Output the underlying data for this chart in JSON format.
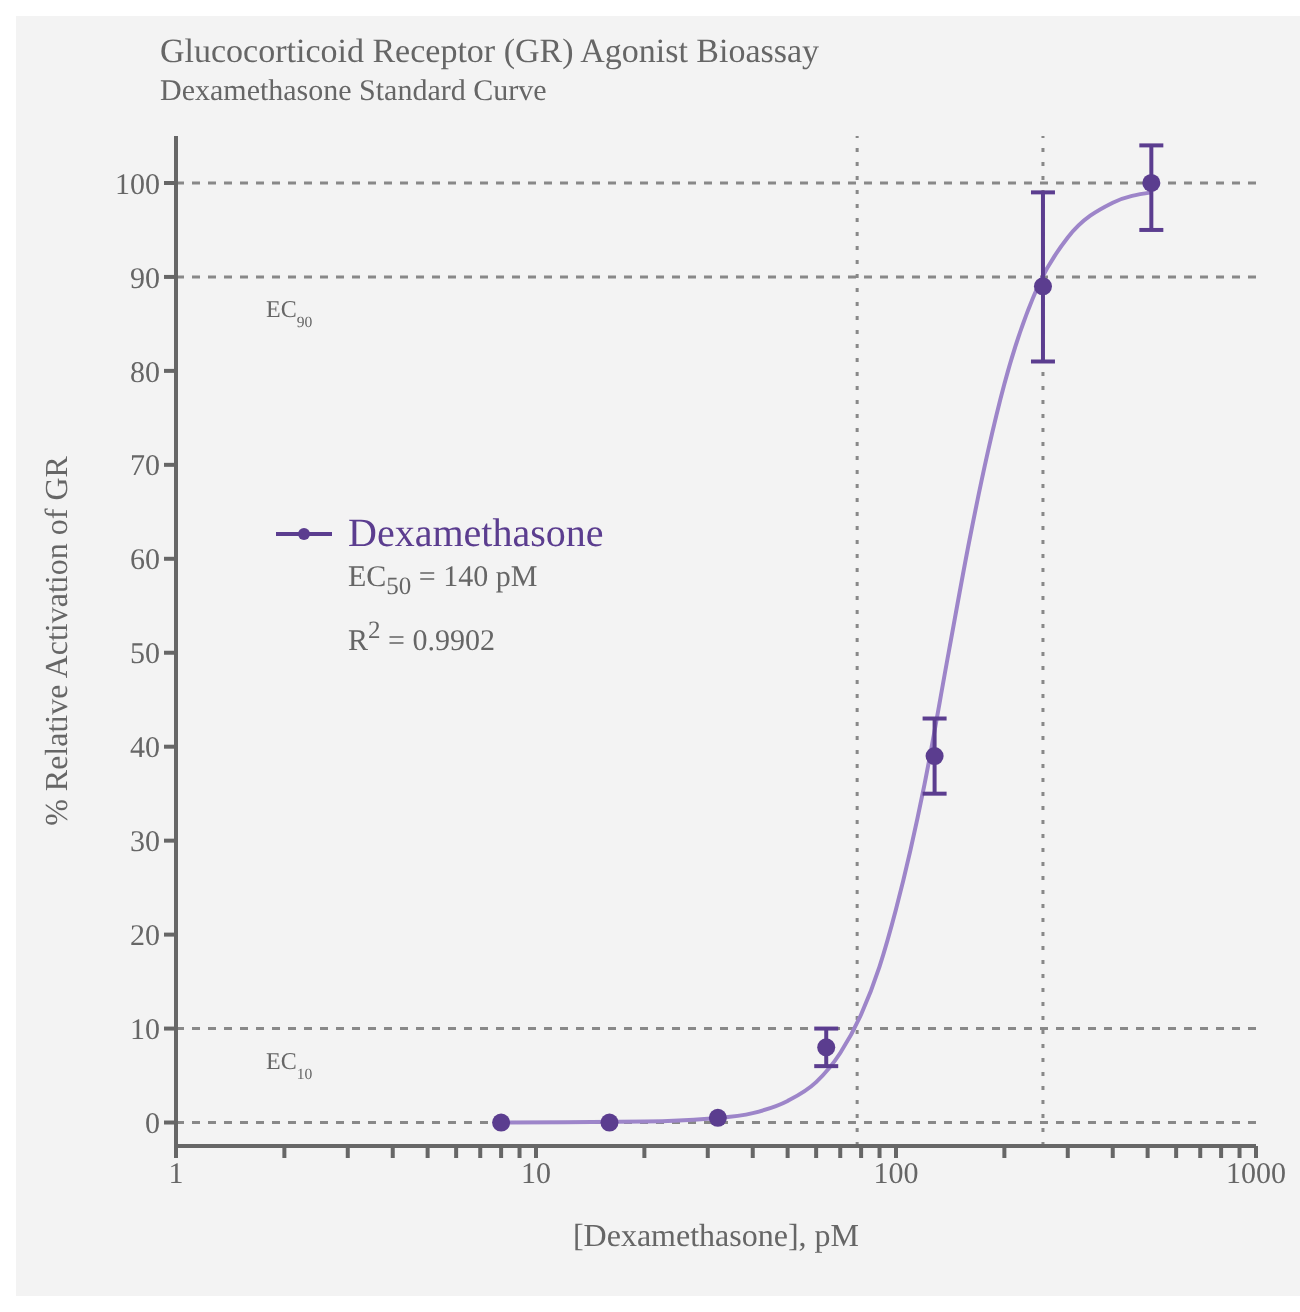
{
  "chart_data": {
    "type": "scatter",
    "title": "Glucocorticoid Receptor (GR) Agonist Bioassay",
    "subtitle": "Dexamethasone Standard Curve",
    "xlabel": "[Dexamethasone], pM",
    "ylabel": "% Relative Activation of GR",
    "series": [
      {
        "name": "Dexamethasone",
        "marker": "circle",
        "color": "#5b3d8f",
        "x": [
          8,
          16,
          32,
          64,
          128,
          256,
          512
        ],
        "values": [
          0,
          0,
          0.5,
          8,
          39,
          89,
          100
        ],
        "errors": [
          null,
          null,
          null,
          [
            6,
            10
          ],
          [
            35,
            43
          ],
          [
            81,
            99
          ],
          [
            95,
            104
          ]
        ]
      },
      {
        "type": "line",
        "marker": "none",
        "color": "#9d85c9",
        "x": [
          8,
          20,
          30,
          40,
          50,
          60,
          70,
          80,
          90,
          100,
          120,
          140,
          160,
          180,
          200,
          250,
          300,
          400,
          512
        ],
        "values": [
          0,
          0.1,
          0.4,
          1,
          2.3,
          4.3,
          7.4,
          11.5,
          16.6,
          22.7,
          36,
          50,
          62,
          71.4,
          78.6,
          89.3,
          94.2,
          97.9,
          99
        ]
      }
    ],
    "log": "x",
    "xlim": [
      1,
      1000
    ],
    "xticks": [
      1,
      {
        "value": 2,
        "label": null
      },
      {
        "value": 3,
        "label": null
      },
      {
        "value": 4,
        "label": null
      },
      {
        "value": 5,
        "label": null
      },
      {
        "value": 6,
        "label": null
      },
      {
        "value": 7,
        "label": null
      },
      {
        "value": 8,
        "label": null
      },
      {
        "value": 9,
        "label": null
      },
      10,
      {
        "value": 20,
        "label": null
      },
      {
        "value": 30,
        "label": null
      },
      {
        "value": 40,
        "label": null
      },
      {
        "value": 50,
        "label": null
      },
      {
        "value": 60,
        "label": null
      },
      {
        "value": 70,
        "label": null
      },
      {
        "value": 80,
        "label": null
      },
      {
        "value": 90,
        "label": null
      },
      100,
      {
        "value": 200,
        "label": null
      },
      {
        "value": 300,
        "label": null
      },
      {
        "value": 400,
        "label": null
      },
      {
        "value": 500,
        "label": null
      },
      {
        "value": 600,
        "label": null
      },
      {
        "value": 700,
        "label": null
      },
      {
        "value": 800,
        "label": null
      },
      {
        "value": 900,
        "label": null
      },
      1000
    ],
    "ylim": [
      -2.5,
      105
    ],
    "yticks": [
      0,
      10,
      20,
      30,
      40,
      50,
      60,
      70,
      80,
      90,
      100
    ],
    "ref_lines": [
      {
        "axis": "y",
        "value": 100,
        "line_style": "dashed"
      },
      {
        "axis": "y",
        "value": 90,
        "label": "EC$_{90}$",
        "line_style": "dashed"
      },
      {
        "axis": "y",
        "value": 10,
        "label": "EC$_{10}$",
        "line_style": "dashed"
      },
      {
        "axis": "y",
        "value": 0,
        "line_style": "dashed"
      },
      {
        "axis": "x",
        "value": 256,
        "line_style": "dotted"
      },
      {
        "axis": "x",
        "value": 78,
        "line_style": "dotted"
      }
    ],
    "annotations": [
      "EC$_{50}$ = 140 pM",
      "R$^{2}$ = 0.9902"
    ],
    "legend": "left"
  }
}
